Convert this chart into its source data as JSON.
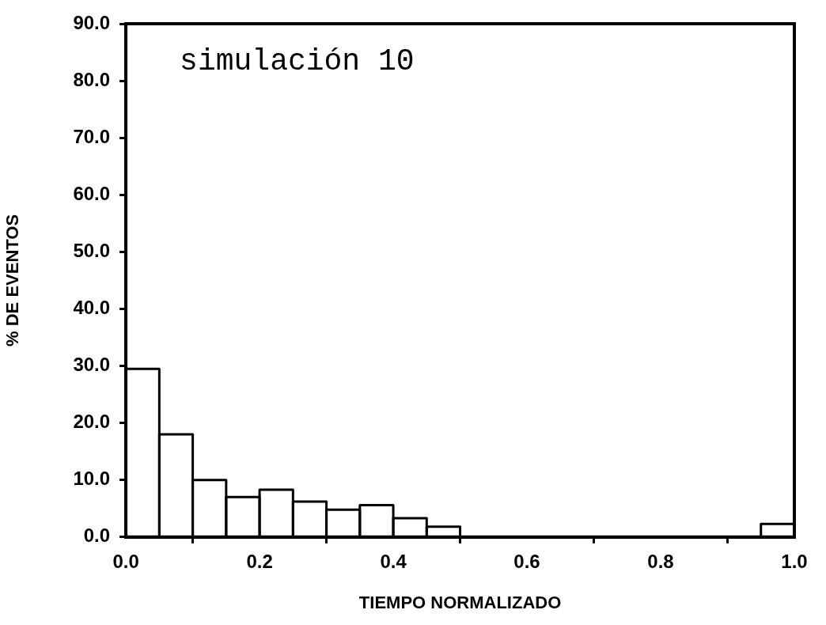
{
  "chart_data": {
    "type": "histogram",
    "xlabel": "TIEMPO NORMALIZADO",
    "ylabel": "% DE EVENTOS",
    "annotations": [
      "simulación 10"
    ],
    "bins": [
      0,
      0.05,
      0.1,
      0.15,
      0.2,
      0.25,
      0.3,
      0.35,
      0.4,
      0.45,
      0.5,
      0.55,
      0.6,
      0.65,
      0.7,
      0.75,
      0.8,
      0.85,
      0.9,
      0.95,
      1.0
    ],
    "values": [
      29.5,
      18,
      10,
      7,
      8.3,
      6.2,
      4.8,
      5.6,
      3.3,
      1.8,
      0,
      0,
      0,
      0,
      0,
      0,
      0,
      0,
      0,
      2.3
    ],
    "color": "#000000",
    "xlim": [
      0,
      1.0
    ],
    "xticks": [
      {
        "value": 0,
        "label": "0.0"
      },
      {
        "value": 0.2,
        "label": "0.2"
      },
      {
        "value": 0.4,
        "label": "0.4"
      },
      {
        "value": 0.6,
        "label": "0.6"
      },
      {
        "value": 0.8,
        "label": "0.8"
      },
      {
        "value": 1.0,
        "label": "1.0"
      }
    ],
    "ylim": [
      0,
      90
    ],
    "yticks": [
      {
        "value": 0,
        "label": "0.0"
      },
      {
        "value": 10,
        "label": "10.0"
      },
      {
        "value": 20,
        "label": "20.0"
      },
      {
        "value": 30,
        "label": "30.0"
      },
      {
        "value": 40,
        "label": "40.0"
      },
      {
        "value": 50,
        "label": "50.0"
      },
      {
        "value": 60,
        "label": "60.0"
      },
      {
        "value": 70,
        "label": "70.0"
      },
      {
        "value": 80,
        "label": "80.0"
      },
      {
        "value": 90,
        "label": "90.0"
      }
    ]
  }
}
